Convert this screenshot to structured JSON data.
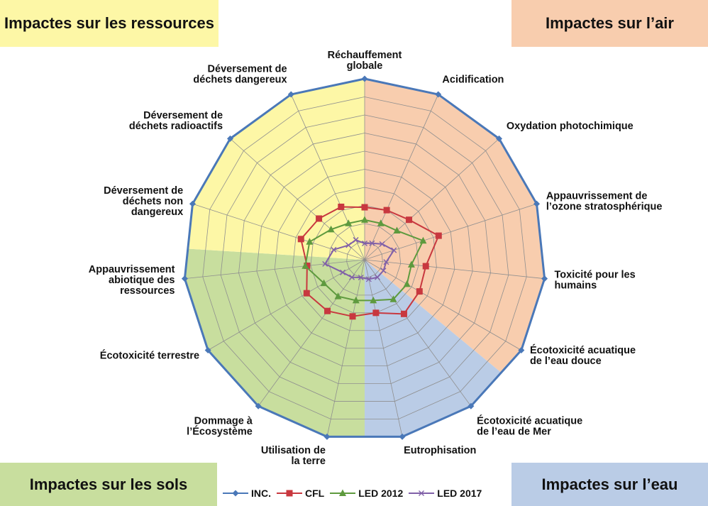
{
  "corners": {
    "resources": "Impactes sur les ressources",
    "air": "Impactes sur l’air",
    "soils": "Impactes sur les sols",
    "water": "Impactes sur l’eau"
  },
  "chart_data": {
    "type": "radar",
    "axes": [
      [
        "Réchauffement",
        "globale"
      ],
      [
        "Acidification"
      ],
      [
        "Oxydation photochimique"
      ],
      [
        "Appauvrissement de",
        "l’ozone stratosphérique"
      ],
      [
        "Toxicité pour les",
        "humains"
      ],
      [
        "Écotoxicité acuatique",
        "de l’eau douce"
      ],
      [
        "Écotoxicité acuatique",
        "de l’eau de Mer"
      ],
      [
        "Eutrophisation"
      ],
      [
        "Utilisation de",
        "la terre"
      ],
      [
        "Dommage à",
        "l’Écosystème"
      ],
      [
        "Écotoxicité terrestre"
      ],
      [
        "Appauvrissement",
        "abiotique des",
        "ressources"
      ],
      [
        "Déversement de",
        "déchets non",
        "dangereux"
      ],
      [
        "Déversement de",
        "déchets radioactifs"
      ],
      [
        "Déversement de",
        "déchets dangereux"
      ]
    ],
    "rlim": [
      0,
      100
    ],
    "grid": true,
    "legend_position": "bottom",
    "series": [
      {
        "name": "INC.",
        "color": "#4A78B8",
        "marker": "diamond",
        "values": [
          100,
          100,
          100,
          100,
          100,
          100,
          100,
          100,
          100,
          100,
          100,
          100,
          100,
          100,
          100
        ]
      },
      {
        "name": "CFL",
        "color": "#C8383F",
        "marker": "square",
        "values": [
          29,
          30,
          33,
          43,
          34,
          35,
          37,
          30,
          32,
          35,
          37,
          32,
          37,
          34,
          32
        ]
      },
      {
        "name": "LED 2012",
        "color": "#5E9A3E",
        "marker": "triangle",
        "values": [
          22,
          22,
          24,
          34,
          26,
          27,
          27,
          23,
          23,
          25,
          26,
          33,
          32,
          25,
          22
        ]
      },
      {
        "name": "LED 2017",
        "color": "#8060A8",
        "marker": "cross",
        "values": [
          9,
          10,
          13,
          17,
          12,
          12,
          12,
          11,
          10,
          12,
          14,
          22,
          18,
          12,
          12
        ]
      }
    ],
    "sectors": [
      {
        "label": "air",
        "color": "#F8CDAE",
        "from_axis": 0,
        "to_axis": 5.4
      },
      {
        "label": "water",
        "color": "#BACCE6",
        "from_axis": 5.4,
        "to_axis": 7.5
      },
      {
        "label": "soils",
        "color": "#C8DE9E",
        "from_axis": 7.5,
        "to_axis": 11.4
      },
      {
        "label": "resources",
        "color": "#FDF7A6",
        "from_axis": 11.4,
        "to_axis": 15
      }
    ]
  }
}
